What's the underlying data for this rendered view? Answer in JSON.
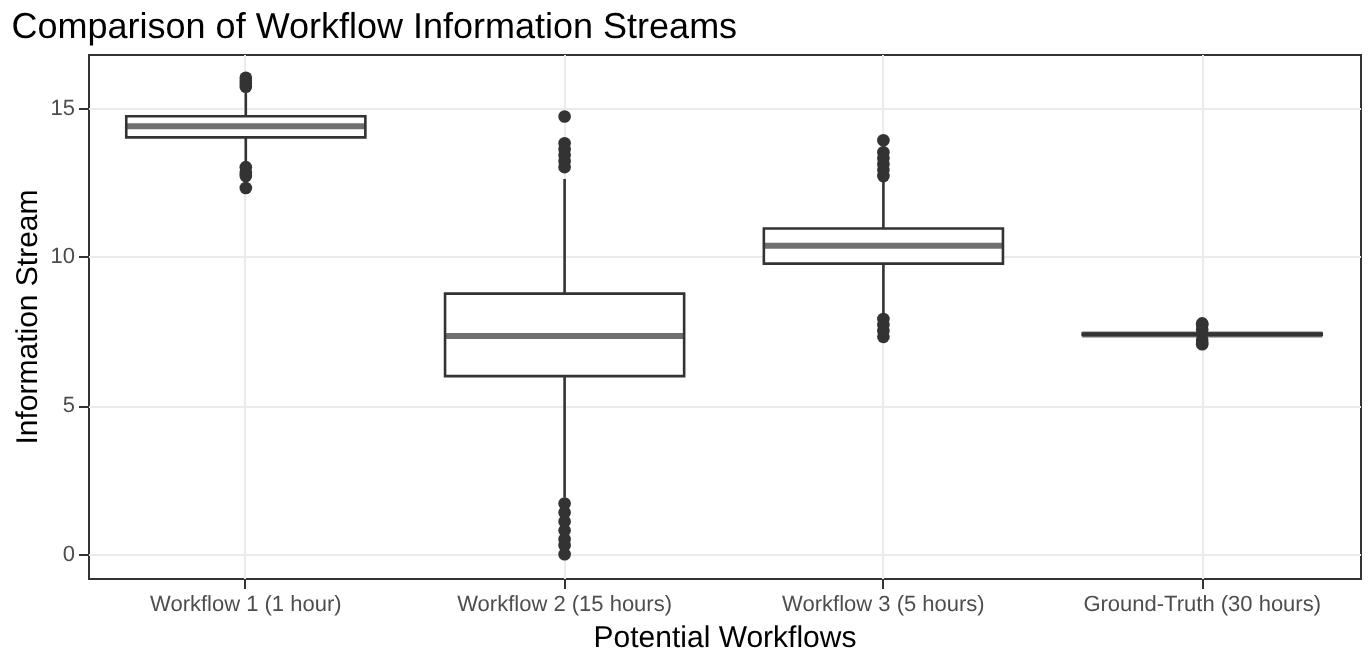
{
  "chart_data": {
    "type": "box",
    "title": "Comparison of Workflow Information Streams",
    "xlabel": "Potential Workflows",
    "ylabel": "Information Stream",
    "categories": [
      "Workflow 1 (1 hour)",
      "Workflow 2 (15 hours)",
      "Workflow 3 (5 hours)",
      "Ground-Truth (30 hours)"
    ],
    "boxes": [
      {
        "low": 13.2,
        "q1": 14.0,
        "median": 14.37,
        "q3": 14.71,
        "high": 15.5,
        "outliers": [
          15.7,
          15.8,
          15.9,
          16.0,
          13.0,
          12.8,
          12.7,
          12.3
        ]
      },
      {
        "low": 1.9,
        "q1": 5.98,
        "median": 7.33,
        "q3": 8.75,
        "high": 12.6,
        "outliers": [
          13.0,
          13.2,
          13.4,
          13.6,
          13.8,
          14.7,
          1.7,
          1.4,
          1.1,
          0.8,
          0.5,
          0.3,
          0.0
        ]
      },
      {
        "low": 8.1,
        "q1": 9.76,
        "median": 10.36,
        "q3": 10.94,
        "high": 12.6,
        "outliers": [
          12.7,
          12.9,
          13.1,
          13.3,
          13.5,
          13.9,
          7.9,
          7.7,
          7.5,
          7.3
        ]
      },
      {
        "low": 7.3,
        "q1": 7.36,
        "median": 7.38,
        "q3": 7.41,
        "high": 7.45,
        "outliers": [
          7.55,
          7.7,
          7.75,
          7.2,
          7.1,
          7.05
        ]
      }
    ],
    "color": "#333333",
    "ylim": [
      -0.8,
      16.8
    ],
    "yticks": [
      0,
      5,
      10,
      15
    ],
    "grid": true
  }
}
